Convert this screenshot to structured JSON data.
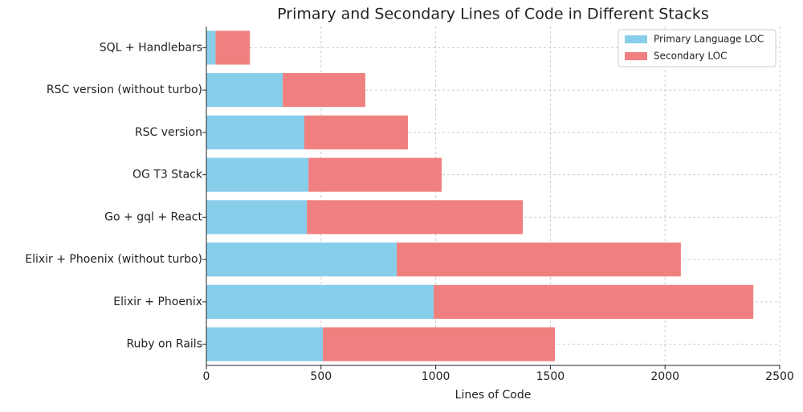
{
  "chart_data": {
    "type": "stacked-barh",
    "title": "Primary and Secondary Lines of Code in Different Stacks",
    "x_label": "Lines of Code",
    "categories": [
      "SQL + Handlebars",
      "RSC version (without turbo)",
      "RSC version",
      "OG T3 Stack",
      "Go + gql + React",
      "Elixir + Phoenix (without turbo)",
      "Elixir + Phoenix",
      "Ruby on Rails"
    ],
    "series": [
      {
        "name": "Primary Language LOC",
        "color": "#87ceeb",
        "values": [
          40,
          333,
          427,
          445,
          438,
          830,
          991,
          508
        ]
      },
      {
        "name": "Secondary LOC",
        "color": "#f08080",
        "values": [
          150,
          360,
          452,
          581,
          942,
          1239,
          1394,
          1012
        ]
      }
    ],
    "xlim": [
      0,
      2500
    ],
    "xticks": [
      0,
      500,
      1000,
      1500,
      2000,
      2500
    ],
    "grid": true,
    "legend": "upper-right"
  }
}
